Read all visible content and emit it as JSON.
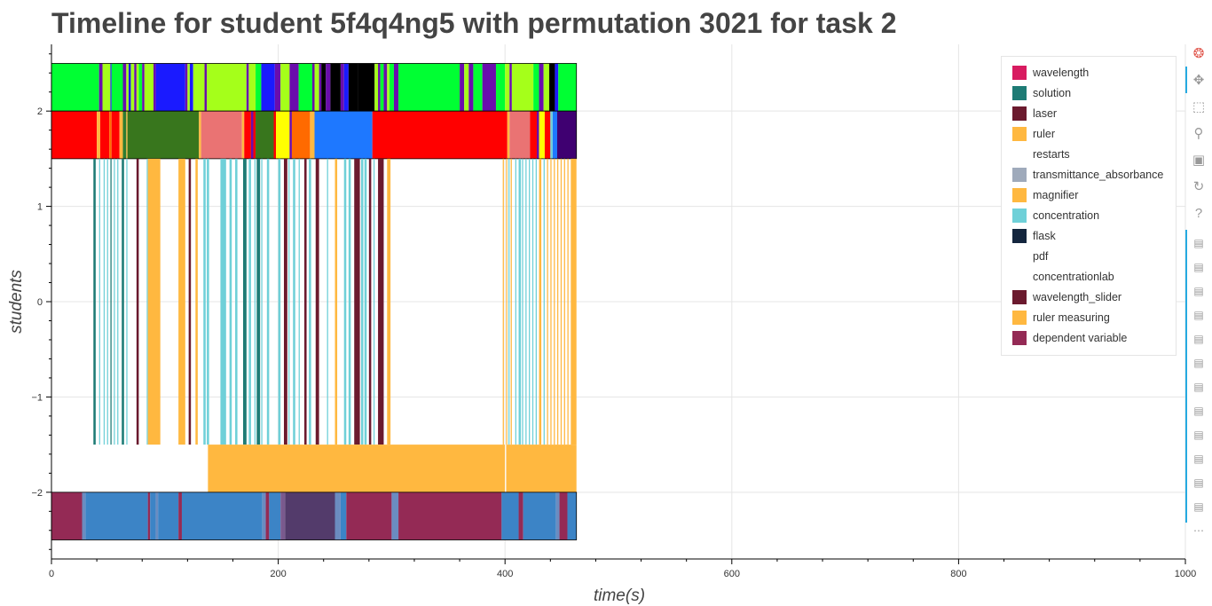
{
  "title": "Timeline for student 5f4q4ng5 with permutation 3021 for task 2",
  "chart_data": {
    "type": "timeline",
    "title": "Timeline for student 5f4q4ng5 with permutation 3021 for task 2",
    "xlabel": "time(s)",
    "ylabel": "students",
    "xlim": [
      0,
      1000
    ],
    "ylim": [
      -2.7,
      2.7
    ],
    "x_ticks": [
      0,
      200,
      400,
      600,
      800,
      1000
    ],
    "y_ticks": [
      -2,
      -1,
      0,
      1,
      2
    ],
    "y_tick_labels": [
      "−2",
      "−1",
      "0",
      "1",
      "2"
    ],
    "grid": true,
    "legend_position": "top-right",
    "legend": [
      {
        "label": "wavelength",
        "color": "#D81B60"
      },
      {
        "label": "solution",
        "color": "#1E7B75"
      },
      {
        "label": "laser",
        "color": "#6B1A2E"
      },
      {
        "label": "ruler",
        "color": "#FFB840"
      },
      {
        "label": "restarts",
        "color": "#FFFFFF"
      },
      {
        "label": "transmittance_absorbance",
        "color": "#9FAABB"
      },
      {
        "label": "magnifier",
        "color": "#FFB840"
      },
      {
        "label": "concentration",
        "color": "#6FD0D8"
      },
      {
        "label": "flask",
        "color": "#14263E"
      },
      {
        "label": "pdf",
        "color": "#FFFFFF"
      },
      {
        "label": "concentrationlab",
        "color": "#FFFFFF"
      },
      {
        "label": "wavelength_slider",
        "color": "#6B1A2E"
      },
      {
        "label": "ruler measuring",
        "color": "#FFB840"
      },
      {
        "label": "dependent variable",
        "color": "#942A55"
      }
    ],
    "rows": [
      {
        "y_range": [
          2,
          2.5
        ],
        "segments": [
          [
            0,
            42,
            "#00FF33"
          ],
          [
            42,
            45,
            "#6A0DAD"
          ],
          [
            45,
            52,
            "#A5FF1A"
          ],
          [
            52,
            53,
            "#1A1AFF"
          ],
          [
            53,
            63,
            "#00FF33"
          ],
          [
            63,
            66,
            "#6A0DAD"
          ],
          [
            66,
            68,
            "#A5FF1A"
          ],
          [
            68,
            70,
            "#1A1AFF"
          ],
          [
            70,
            73,
            "#A5FF1A"
          ],
          [
            73,
            75,
            "#6A0DAD"
          ],
          [
            75,
            77,
            "#A5FF1A"
          ],
          [
            77,
            80,
            "#00FF33"
          ],
          [
            80,
            82,
            "#6A0DAD"
          ],
          [
            82,
            90,
            "#A5FF1A"
          ],
          [
            90,
            92,
            "#6A0DAD"
          ],
          [
            92,
            118,
            "#1A1AFF"
          ],
          [
            118,
            120,
            "#6A0DAD"
          ],
          [
            120,
            122,
            "#A5FF1A"
          ],
          [
            122,
            125,
            "#1A1AFF"
          ],
          [
            125,
            135,
            "#A5FF1A"
          ],
          [
            135,
            137,
            "#6A0DAD"
          ],
          [
            137,
            172,
            "#A5FF1A"
          ],
          [
            172,
            174,
            "#6A0DAD"
          ],
          [
            174,
            180,
            "#A5FF1A"
          ],
          [
            180,
            185,
            "#00FF33"
          ],
          [
            185,
            197,
            "#1A1AFF"
          ],
          [
            197,
            202,
            "#6A0DAD"
          ],
          [
            202,
            210,
            "#A5FF1A"
          ],
          [
            210,
            218,
            "#6A0DAD"
          ],
          [
            218,
            230,
            "#00FF33"
          ],
          [
            230,
            232,
            "#6A0DAD"
          ],
          [
            232,
            236,
            "#A5FF1A"
          ],
          [
            236,
            238,
            "#6A0DAD"
          ],
          [
            238,
            242,
            "#000000"
          ],
          [
            242,
            246,
            "#6A0DAD"
          ],
          [
            246,
            255,
            "#000000"
          ],
          [
            255,
            258,
            "#6A0DAD"
          ],
          [
            258,
            262,
            "#1A1AFF"
          ],
          [
            262,
            270,
            "#000000"
          ],
          [
            270,
            285,
            "#000000"
          ],
          [
            285,
            288,
            "#A5FF1A"
          ],
          [
            288,
            290,
            "#6A0DAD"
          ],
          [
            290,
            293,
            "#00FF33"
          ],
          [
            293,
            296,
            "#6A0DAD"
          ],
          [
            296,
            298,
            "#A5FF1A"
          ],
          [
            298,
            302,
            "#00FF33"
          ],
          [
            302,
            306,
            "#6A0DAD"
          ],
          [
            306,
            360,
            "#00FF33"
          ],
          [
            360,
            364,
            "#6A0DAD"
          ],
          [
            364,
            368,
            "#A5FF1A"
          ],
          [
            368,
            372,
            "#6A0DAD"
          ],
          [
            372,
            380,
            "#00FF33"
          ],
          [
            380,
            392,
            "#6A0DAD"
          ],
          [
            392,
            400,
            "#00FF33"
          ],
          [
            400,
            404,
            "#A5FF1A"
          ],
          [
            404,
            406,
            "#6A0DAD"
          ],
          [
            406,
            425,
            "#A5FF1A"
          ],
          [
            425,
            430,
            "#00FF33"
          ],
          [
            430,
            434,
            "#6A0DAD"
          ],
          [
            434,
            439,
            "#A5FF1A"
          ],
          [
            439,
            444,
            "#000000"
          ],
          [
            444,
            447,
            "#1A1AFF"
          ],
          [
            447,
            463,
            "#00FF33"
          ]
        ]
      },
      {
        "y_range": [
          1.5,
          2
        ],
        "segments": [
          [
            0,
            40,
            "#FF0000"
          ],
          [
            40,
            43,
            "#FFB840"
          ],
          [
            43,
            51,
            "#FF0000"
          ],
          [
            51,
            53,
            "#FF6A00"
          ],
          [
            53,
            60,
            "#FF0000"
          ],
          [
            60,
            63,
            "#FFB840"
          ],
          [
            63,
            66,
            "#2E7D32"
          ],
          [
            66,
            67,
            "#FFB840"
          ],
          [
            67,
            130,
            "#38761D"
          ],
          [
            130,
            132,
            "#FFB840"
          ],
          [
            132,
            168,
            "#EA7373"
          ],
          [
            168,
            170,
            "#FFB840"
          ],
          [
            170,
            176,
            "#FF0000"
          ],
          [
            176,
            178,
            "#6A0DAD"
          ],
          [
            178,
            180,
            "#FF0000"
          ],
          [
            180,
            196,
            "#38761D"
          ],
          [
            196,
            198,
            "#FF0000"
          ],
          [
            198,
            210,
            "#FFFF00"
          ],
          [
            210,
            212,
            "#6A0DAD"
          ],
          [
            212,
            228,
            "#FF6A00"
          ],
          [
            228,
            232,
            "#FFB840"
          ],
          [
            232,
            283,
            "#1E78FF"
          ],
          [
            283,
            402,
            "#FF0000"
          ],
          [
            402,
            404,
            "#FFB840"
          ],
          [
            404,
            422,
            "#EA7373"
          ],
          [
            422,
            428,
            "#FF0000"
          ],
          [
            428,
            430,
            "#6A0DAD"
          ],
          [
            430,
            435,
            "#FFFF00"
          ],
          [
            435,
            440,
            "#FF0000"
          ],
          [
            440,
            442,
            "#6FD0D8"
          ],
          [
            442,
            446,
            "#1E78FF"
          ],
          [
            446,
            463,
            "#3F0071"
          ]
        ]
      },
      {
        "y_range": [
          -1.5,
          1.5
        ],
        "segments": [
          [
            37,
            39,
            "#1E7B75"
          ],
          [
            42,
            43,
            "#6FD0D8"
          ],
          [
            46,
            47,
            "#6FD0D8"
          ],
          [
            49,
            50,
            "#6FD0D8"
          ],
          [
            52,
            53,
            "#1E7B75"
          ],
          [
            55,
            56,
            "#6FD0D8"
          ],
          [
            58,
            59,
            "#6FD0D8"
          ],
          [
            62,
            64,
            "#1E7B75"
          ],
          [
            66,
            67,
            "#6FD0D8"
          ],
          [
            75,
            77,
            "#6B1A2E"
          ],
          [
            84,
            85,
            "#6FD0D8"
          ],
          [
            85,
            96,
            "#FFB840"
          ],
          [
            112,
            118,
            "#FFB840"
          ],
          [
            121,
            123,
            "#6B1A2E"
          ],
          [
            127,
            129,
            "#FFB840"
          ],
          [
            134,
            136,
            "#6FD0D8"
          ],
          [
            137,
            139,
            "#6FD0D8"
          ],
          [
            149,
            154,
            "#6FD0D8"
          ],
          [
            157,
            159,
            "#6FD0D8"
          ],
          [
            162,
            164,
            "#6FD0D8"
          ],
          [
            169,
            172,
            "#1E7B75"
          ],
          [
            174,
            176,
            "#6FD0D8"
          ],
          [
            179,
            180,
            "#6FD0D8"
          ],
          [
            181,
            184,
            "#1E7B75"
          ],
          [
            185,
            186,
            "#6FD0D8"
          ],
          [
            190,
            192,
            "#6FD0D8"
          ],
          [
            200,
            202,
            "#6FD0D8"
          ],
          [
            205,
            208,
            "#6B1A2E"
          ],
          [
            209,
            210,
            "#6FD0D8"
          ],
          [
            213,
            215,
            "#6FD0D8"
          ],
          [
            218,
            219,
            "#6FD0D8"
          ],
          [
            223,
            225,
            "#6B1A2E"
          ],
          [
            227,
            229,
            "#6FD0D8"
          ],
          [
            233,
            236,
            "#6B1A2E"
          ],
          [
            243,
            244,
            "#6FD0D8"
          ],
          [
            250,
            252,
            "#FFB840"
          ],
          [
            258,
            260,
            "#6FD0D8"
          ],
          [
            262,
            264,
            "#6FD0D8"
          ],
          [
            267,
            272,
            "#6B1A2E"
          ],
          [
            273,
            275,
            "#6FD0D8"
          ],
          [
            276,
            278,
            "#6FD0D8"
          ],
          [
            280,
            282,
            "#6B1A2E"
          ],
          [
            284,
            285,
            "#6FD0D8"
          ],
          [
            288,
            293,
            "#6B1A2E"
          ],
          [
            296,
            299,
            "#FFB840"
          ],
          [
            398,
            399,
            "#FFB840"
          ],
          [
            401,
            402,
            "#FFB840"
          ],
          [
            403,
            404,
            "#6FD0D8"
          ],
          [
            405,
            406,
            "#FFB840"
          ],
          [
            409,
            410,
            "#6FD0D8"
          ],
          [
            412,
            414,
            "#6FD0D8"
          ],
          [
            415,
            416,
            "#6FD0D8"
          ],
          [
            418,
            419,
            "#6FD0D8"
          ],
          [
            421,
            422,
            "#6FD0D8"
          ],
          [
            424,
            425,
            "#6FD0D8"
          ],
          [
            427,
            428,
            "#6FD0D8"
          ],
          [
            430,
            432,
            "#FFB840"
          ],
          [
            434,
            435,
            "#6FD0D8"
          ],
          [
            437,
            438,
            "#FFB840"
          ],
          [
            440,
            441,
            "#FFB840"
          ],
          [
            443,
            444,
            "#FFB840"
          ],
          [
            446,
            447,
            "#FFB840"
          ],
          [
            449,
            450,
            "#FFB840"
          ],
          [
            452,
            453,
            "#FFB840"
          ],
          [
            455,
            456,
            "#FFB840"
          ],
          [
            458,
            463,
            "#FFB840"
          ]
        ]
      },
      {
        "y_range": [
          -2,
          -1.5
        ],
        "segments": [
          [
            138,
            400,
            "#FFB840"
          ],
          [
            400,
            401,
            "#FFFFFF"
          ],
          [
            401,
            463,
            "#FFB840"
          ]
        ]
      },
      {
        "y_range": [
          -2.5,
          -2
        ],
        "segments": [
          [
            0,
            27,
            "#942A55"
          ],
          [
            27,
            30,
            "#6B8CC0"
          ],
          [
            30,
            85,
            "#3C84C6"
          ],
          [
            85,
            87,
            "#942A55"
          ],
          [
            87,
            92,
            "#3C84C6"
          ],
          [
            92,
            94,
            "#6B8CC0"
          ],
          [
            94,
            112,
            "#3C84C6"
          ],
          [
            112,
            115,
            "#942A55"
          ],
          [
            115,
            186,
            "#3C84C6"
          ],
          [
            186,
            189,
            "#6B8CC0"
          ],
          [
            189,
            192,
            "#942A55"
          ],
          [
            192,
            202,
            "#3C84C6"
          ],
          [
            202,
            206,
            "#7A5A8E"
          ],
          [
            206,
            250,
            "#533B6B"
          ],
          [
            250,
            255,
            "#6B8CC0"
          ],
          [
            255,
            260,
            "#3C84C6"
          ],
          [
            260,
            300,
            "#942A55"
          ],
          [
            300,
            306,
            "#6B8CC0"
          ],
          [
            306,
            397,
            "#942A55"
          ],
          [
            397,
            412,
            "#3C84C6"
          ],
          [
            412,
            416,
            "#942A55"
          ],
          [
            416,
            445,
            "#3C84C6"
          ],
          [
            445,
            448,
            "#6B8CC0"
          ],
          [
            448,
            455,
            "#942A55"
          ],
          [
            455,
            463,
            "#3C84C6"
          ]
        ]
      }
    ]
  },
  "toolbar": {
    "tools": [
      {
        "name": "bokeh-logo-icon",
        "glyph": "❂",
        "color": "#e0584e"
      },
      {
        "name": "pan-tool-icon",
        "glyph": "✥",
        "color": "#999999"
      },
      {
        "name": "box-zoom-tool-icon",
        "glyph": "⬚",
        "color": "#999999"
      },
      {
        "name": "wheel-zoom-tool-icon",
        "glyph": "⚲",
        "color": "#999999"
      },
      {
        "name": "save-tool-icon",
        "glyph": "▣",
        "color": "#999999"
      },
      {
        "name": "reset-tool-icon",
        "glyph": "↻",
        "color": "#999999"
      },
      {
        "name": "help-tool-icon",
        "glyph": "?",
        "color": "#999999"
      }
    ],
    "hover_tool_count": 12,
    "more_glyph": "⋯"
  }
}
